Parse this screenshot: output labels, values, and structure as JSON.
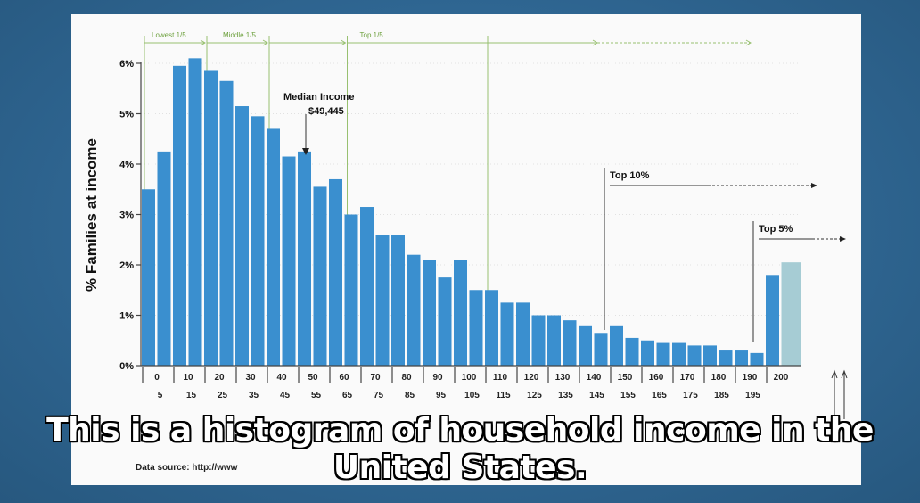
{
  "caption": "This is a histogram of household income in the United States.",
  "source_text": "Data source: http://www",
  "chart_data": {
    "type": "bar",
    "ylabel": "% Families at income",
    "ylim": [
      0,
      6.4
    ],
    "yticks": [
      {
        "v": 0,
        "label": "0%"
      },
      {
        "v": 1,
        "label": "1%"
      },
      {
        "v": 2,
        "label": "2%"
      },
      {
        "v": 3,
        "label": "3%"
      },
      {
        "v": 4,
        "label": "4%"
      },
      {
        "v": 5,
        "label": "5%"
      },
      {
        "v": 6,
        "label": "6%"
      }
    ],
    "xticks_top": [
      "0",
      "10",
      "20",
      "30",
      "40",
      "50",
      "60",
      "70",
      "80",
      "90",
      "100",
      "110",
      "120",
      "130",
      "140",
      "150",
      "160",
      "170",
      "180",
      "190",
      "200"
    ],
    "xticks_bottom": [
      "5",
      "15",
      "25",
      "35",
      "45",
      "55",
      "65",
      "75",
      "85",
      "95",
      "105",
      "115",
      "125",
      "135",
      "145",
      "155",
      "165",
      "175",
      "185",
      "195"
    ],
    "values": [
      3.5,
      4.25,
      5.95,
      6.1,
      5.85,
      5.65,
      5.15,
      4.95,
      4.7,
      4.15,
      4.25,
      3.55,
      3.7,
      3.0,
      3.15,
      2.6,
      2.6,
      2.2,
      2.1,
      1.75,
      2.1,
      1.5,
      1.5,
      1.25,
      1.25,
      1.0,
      1.0,
      0.9,
      0.8,
      0.65,
      0.8,
      0.55,
      0.5,
      0.45,
      0.45,
      0.4,
      0.4,
      0.3,
      0.3,
      0.25,
      1.8,
      2.05
    ],
    "bar_color": "#3a8fcf",
    "last_bar_color": "#a6ccd4",
    "bands": [
      "Lowest 1/5",
      "Middle 1/5",
      "Top 1/5"
    ],
    "median_label": "Median Income",
    "median_value": "$49,445",
    "top10_label": "Top 10%",
    "top5_label": "Top 5%"
  }
}
